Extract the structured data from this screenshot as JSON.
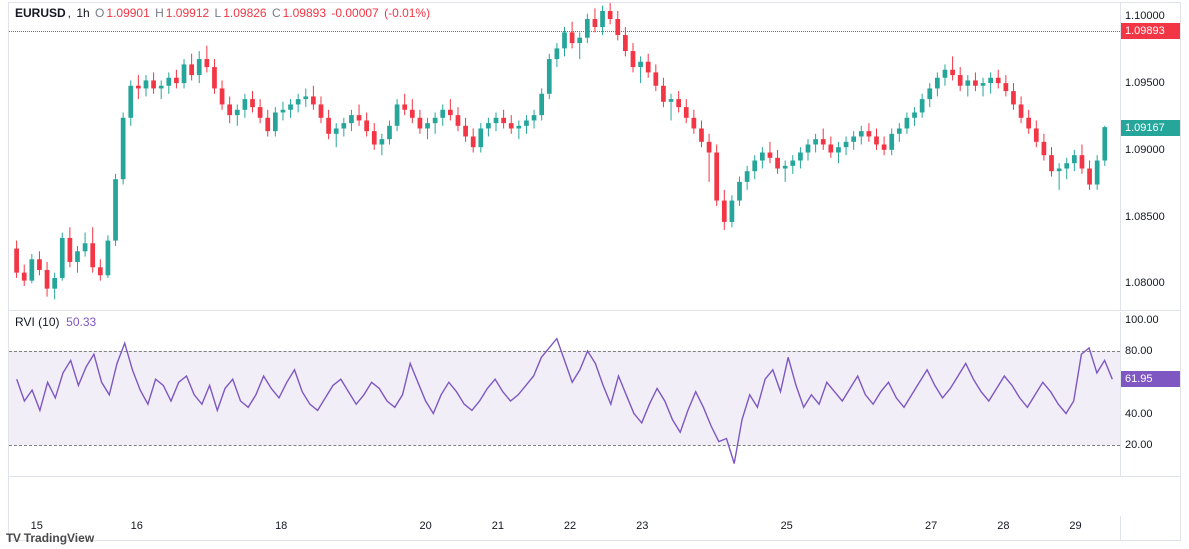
{
  "header": {
    "symbol": "EURUSD",
    "timeframe": "1h",
    "o": "1.09901",
    "h": "1.09912",
    "l": "1.09826",
    "c": "1.09893",
    "change_abs": "-0.00007",
    "change_pct": "(-0.01%)",
    "ohlc_color": "#f23645"
  },
  "price_chart": {
    "type": "candlestick",
    "ylim": [
      1.078,
      1.101
    ],
    "yticks": [
      1.08,
      1.085,
      1.09,
      1.095,
      1.1
    ],
    "ytick_labels": [
      "1.08000",
      "1.08500",
      "1.09000",
      "1.09500",
      "1.10000"
    ],
    "last_close_line": 1.09893,
    "last_close_label": "1.09893",
    "last_price": 1.09167,
    "last_price_label": "1.09167",
    "colors": {
      "up": "#26a69a",
      "down": "#f23645",
      "bg": "#ffffff",
      "grid": "#e0e3eb",
      "close_line": "#f23645",
      "price_badge_bg": "#26a69a"
    },
    "candles": [
      {
        "o": 1.0826,
        "h": 1.0832,
        "l": 1.0804,
        "c": 1.0808
      },
      {
        "o": 1.0808,
        "h": 1.0814,
        "l": 1.0798,
        "c": 1.0802
      },
      {
        "o": 1.0802,
        "h": 1.0822,
        "l": 1.08,
        "c": 1.0818
      },
      {
        "o": 1.0818,
        "h": 1.0824,
        "l": 1.0806,
        "c": 1.081
      },
      {
        "o": 1.081,
        "h": 1.0816,
        "l": 1.079,
        "c": 1.0796
      },
      {
        "o": 1.0796,
        "h": 1.0808,
        "l": 1.0788,
        "c": 1.0804
      },
      {
        "o": 1.0804,
        "h": 1.0838,
        "l": 1.0802,
        "c": 1.0834
      },
      {
        "o": 1.0834,
        "h": 1.0842,
        "l": 1.0812,
        "c": 1.0816
      },
      {
        "o": 1.0816,
        "h": 1.0828,
        "l": 1.0808,
        "c": 1.0824
      },
      {
        "o": 1.0824,
        "h": 1.0838,
        "l": 1.082,
        "c": 1.083
      },
      {
        "o": 1.083,
        "h": 1.0842,
        "l": 1.0808,
        "c": 1.0812
      },
      {
        "o": 1.0812,
        "h": 1.0818,
        "l": 1.0802,
        "c": 1.0806
      },
      {
        "o": 1.0806,
        "h": 1.0836,
        "l": 1.0804,
        "c": 1.0832
      },
      {
        "o": 1.0832,
        "h": 1.0882,
        "l": 1.0828,
        "c": 1.0878
      },
      {
        "o": 1.0878,
        "h": 1.0928,
        "l": 1.0874,
        "c": 1.0924
      },
      {
        "o": 1.0924,
        "h": 1.0952,
        "l": 1.0918,
        "c": 1.0948
      },
      {
        "o": 1.0948,
        "h": 1.0956,
        "l": 1.0938,
        "c": 1.0946
      },
      {
        "o": 1.0946,
        "h": 1.0956,
        "l": 1.094,
        "c": 1.0952
      },
      {
        "o": 1.0952,
        "h": 1.0958,
        "l": 1.0942,
        "c": 1.0946
      },
      {
        "o": 1.0946,
        "h": 1.0952,
        "l": 1.0938,
        "c": 1.0948
      },
      {
        "o": 1.0948,
        "h": 1.0958,
        "l": 1.0942,
        "c": 1.0954
      },
      {
        "o": 1.0954,
        "h": 1.096,
        "l": 1.0946,
        "c": 1.095
      },
      {
        "o": 1.095,
        "h": 1.0968,
        "l": 1.0946,
        "c": 1.0964
      },
      {
        "o": 1.0964,
        "h": 1.0972,
        "l": 1.0952,
        "c": 1.0956
      },
      {
        "o": 1.0956,
        "h": 1.0974,
        "l": 1.095,
        "c": 1.0968
      },
      {
        "o": 1.0968,
        "h": 1.0978,
        "l": 1.0958,
        "c": 1.0962
      },
      {
        "o": 1.0962,
        "h": 1.0968,
        "l": 1.0942,
        "c": 1.0946
      },
      {
        "o": 1.0946,
        "h": 1.0952,
        "l": 1.093,
        "c": 1.0934
      },
      {
        "o": 1.0934,
        "h": 1.094,
        "l": 1.092,
        "c": 1.0926
      },
      {
        "o": 1.0926,
        "h": 1.0934,
        "l": 1.0918,
        "c": 1.093
      },
      {
        "o": 1.093,
        "h": 1.0942,
        "l": 1.0924,
        "c": 1.0938
      },
      {
        "o": 1.0938,
        "h": 1.0944,
        "l": 1.0928,
        "c": 1.0932
      },
      {
        "o": 1.0932,
        "h": 1.0938,
        "l": 1.092,
        "c": 1.0924
      },
      {
        "o": 1.0924,
        "h": 1.093,
        "l": 1.091,
        "c": 1.0914
      },
      {
        "o": 1.0914,
        "h": 1.0932,
        "l": 1.091,
        "c": 1.0928
      },
      {
        "o": 1.0928,
        "h": 1.0936,
        "l": 1.0922,
        "c": 1.093
      },
      {
        "o": 1.093,
        "h": 1.0938,
        "l": 1.0924,
        "c": 1.0934
      },
      {
        "o": 1.0934,
        "h": 1.0942,
        "l": 1.0928,
        "c": 1.0938
      },
      {
        "o": 1.0938,
        "h": 1.0946,
        "l": 1.0932,
        "c": 1.094
      },
      {
        "o": 1.094,
        "h": 1.0948,
        "l": 1.093,
        "c": 1.0934
      },
      {
        "o": 1.0934,
        "h": 1.094,
        "l": 1.092,
        "c": 1.0924
      },
      {
        "o": 1.0924,
        "h": 1.093,
        "l": 1.0908,
        "c": 1.0912
      },
      {
        "o": 1.0912,
        "h": 1.092,
        "l": 1.0902,
        "c": 1.0916
      },
      {
        "o": 1.0916,
        "h": 1.0924,
        "l": 1.091,
        "c": 1.092
      },
      {
        "o": 1.092,
        "h": 1.093,
        "l": 1.0914,
        "c": 1.0926
      },
      {
        "o": 1.0926,
        "h": 1.0934,
        "l": 1.0918,
        "c": 1.0922
      },
      {
        "o": 1.0922,
        "h": 1.0928,
        "l": 1.091,
        "c": 1.0914
      },
      {
        "o": 1.0914,
        "h": 1.092,
        "l": 1.09,
        "c": 1.0904
      },
      {
        "o": 1.0904,
        "h": 1.0912,
        "l": 1.0896,
        "c": 1.0908
      },
      {
        "o": 1.0908,
        "h": 1.0922,
        "l": 1.0904,
        "c": 1.0918
      },
      {
        "o": 1.0918,
        "h": 1.0938,
        "l": 1.0914,
        "c": 1.0934
      },
      {
        "o": 1.0934,
        "h": 1.0942,
        "l": 1.0926,
        "c": 1.093
      },
      {
        "o": 1.093,
        "h": 1.0938,
        "l": 1.092,
        "c": 1.0924
      },
      {
        "o": 1.0924,
        "h": 1.093,
        "l": 1.0912,
        "c": 1.0916
      },
      {
        "o": 1.0916,
        "h": 1.0924,
        "l": 1.0908,
        "c": 1.092
      },
      {
        "o": 1.092,
        "h": 1.0928,
        "l": 1.0912,
        "c": 1.0924
      },
      {
        "o": 1.0924,
        "h": 1.0934,
        "l": 1.0918,
        "c": 1.093
      },
      {
        "o": 1.093,
        "h": 1.0938,
        "l": 1.0922,
        "c": 1.0926
      },
      {
        "o": 1.0926,
        "h": 1.0932,
        "l": 1.0914,
        "c": 1.0918
      },
      {
        "o": 1.0918,
        "h": 1.0924,
        "l": 1.0906,
        "c": 1.091
      },
      {
        "o": 1.091,
        "h": 1.0916,
        "l": 1.0898,
        "c": 1.0902
      },
      {
        "o": 1.0902,
        "h": 1.092,
        "l": 1.0898,
        "c": 1.0916
      },
      {
        "o": 1.0916,
        "h": 1.0924,
        "l": 1.091,
        "c": 1.092
      },
      {
        "o": 1.092,
        "h": 1.0928,
        "l": 1.0914,
        "c": 1.0924
      },
      {
        "o": 1.0924,
        "h": 1.093,
        "l": 1.0916,
        "c": 1.092
      },
      {
        "o": 1.092,
        "h": 1.0926,
        "l": 1.0912,
        "c": 1.0916
      },
      {
        "o": 1.0916,
        "h": 1.0922,
        "l": 1.0908,
        "c": 1.0918
      },
      {
        "o": 1.0918,
        "h": 1.0926,
        "l": 1.0912,
        "c": 1.0922
      },
      {
        "o": 1.0922,
        "h": 1.093,
        "l": 1.0916,
        "c": 1.0926
      },
      {
        "o": 1.0926,
        "h": 1.0946,
        "l": 1.0922,
        "c": 1.0942
      },
      {
        "o": 1.0942,
        "h": 1.0972,
        "l": 1.0938,
        "c": 1.0968
      },
      {
        "o": 1.0968,
        "h": 1.098,
        "l": 1.0962,
        "c": 1.0976
      },
      {
        "o": 1.0976,
        "h": 1.0992,
        "l": 1.097,
        "c": 1.0988
      },
      {
        "o": 1.0988,
        "h": 1.0996,
        "l": 1.0976,
        "c": 1.098
      },
      {
        "o": 1.098,
        "h": 1.0988,
        "l": 1.0968,
        "c": 1.0984
      },
      {
        "o": 1.0984,
        "h": 1.1002,
        "l": 1.098,
        "c": 1.0998
      },
      {
        "o": 1.0998,
        "h": 1.1006,
        "l": 1.0988,
        "c": 1.0992
      },
      {
        "o": 1.0992,
        "h": 1.1008,
        "l": 1.0986,
        "c": 1.1004
      },
      {
        "o": 1.1004,
        "h": 1.101,
        "l": 1.0994,
        "c": 1.0998
      },
      {
        "o": 1.0998,
        "h": 1.1004,
        "l": 1.0982,
        "c": 1.0986
      },
      {
        "o": 1.0986,
        "h": 1.0992,
        "l": 1.097,
        "c": 1.0974
      },
      {
        "o": 1.0974,
        "h": 1.098,
        "l": 1.0958,
        "c": 1.0962
      },
      {
        "o": 1.0962,
        "h": 1.097,
        "l": 1.095,
        "c": 1.0966
      },
      {
        "o": 1.0966,
        "h": 1.0972,
        "l": 1.0954,
        "c": 1.0958
      },
      {
        "o": 1.0958,
        "h": 1.0964,
        "l": 1.0944,
        "c": 1.0948
      },
      {
        "o": 1.0948,
        "h": 1.0954,
        "l": 1.0932,
        "c": 1.0936
      },
      {
        "o": 1.0936,
        "h": 1.0942,
        "l": 1.0922,
        "c": 1.0938
      },
      {
        "o": 1.0938,
        "h": 1.0944,
        "l": 1.0928,
        "c": 1.0932
      },
      {
        "o": 1.0932,
        "h": 1.0938,
        "l": 1.092,
        "c": 1.0924
      },
      {
        "o": 1.0924,
        "h": 1.093,
        "l": 1.0912,
        "c": 1.0916
      },
      {
        "o": 1.0916,
        "h": 1.0922,
        "l": 1.0902,
        "c": 1.0906
      },
      {
        "o": 1.0906,
        "h": 1.0912,
        "l": 1.0876,
        "c": 1.0898
      },
      {
        "o": 1.0898,
        "h": 1.0904,
        "l": 1.0858,
        "c": 1.0862
      },
      {
        "o": 1.0862,
        "h": 1.087,
        "l": 1.084,
        "c": 1.0846
      },
      {
        "o": 1.0846,
        "h": 1.0866,
        "l": 1.0842,
        "c": 1.0862
      },
      {
        "o": 1.0862,
        "h": 1.088,
        "l": 1.0858,
        "c": 1.0876
      },
      {
        "o": 1.0876,
        "h": 1.0888,
        "l": 1.087,
        "c": 1.0884
      },
      {
        "o": 1.0884,
        "h": 1.0896,
        "l": 1.0878,
        "c": 1.0892
      },
      {
        "o": 1.0892,
        "h": 1.0902,
        "l": 1.0886,
        "c": 1.0898
      },
      {
        "o": 1.0898,
        "h": 1.0906,
        "l": 1.089,
        "c": 1.0894
      },
      {
        "o": 1.0894,
        "h": 1.09,
        "l": 1.0882,
        "c": 1.0886
      },
      {
        "o": 1.0886,
        "h": 1.0892,
        "l": 1.0876,
        "c": 1.0888
      },
      {
        "o": 1.0888,
        "h": 1.0896,
        "l": 1.0882,
        "c": 1.0892
      },
      {
        "o": 1.0892,
        "h": 1.0902,
        "l": 1.0886,
        "c": 1.0898
      },
      {
        "o": 1.0898,
        "h": 1.0908,
        "l": 1.0892,
        "c": 1.0904
      },
      {
        "o": 1.0904,
        "h": 1.0912,
        "l": 1.0898,
        "c": 1.0908
      },
      {
        "o": 1.0908,
        "h": 1.0916,
        "l": 1.09,
        "c": 1.0904
      },
      {
        "o": 1.0904,
        "h": 1.091,
        "l": 1.0894,
        "c": 1.0898
      },
      {
        "o": 1.0898,
        "h": 1.0906,
        "l": 1.089,
        "c": 1.0902
      },
      {
        "o": 1.0902,
        "h": 1.091,
        "l": 1.0896,
        "c": 1.0906
      },
      {
        "o": 1.0906,
        "h": 1.0914,
        "l": 1.09,
        "c": 1.091
      },
      {
        "o": 1.091,
        "h": 1.0918,
        "l": 1.0904,
        "c": 1.0914
      },
      {
        "o": 1.0914,
        "h": 1.092,
        "l": 1.0906,
        "c": 1.091
      },
      {
        "o": 1.091,
        "h": 1.0916,
        "l": 1.09,
        "c": 1.0904
      },
      {
        "o": 1.0904,
        "h": 1.091,
        "l": 1.0896,
        "c": 1.09
      },
      {
        "o": 1.09,
        "h": 1.0916,
        "l": 1.0896,
        "c": 1.0912
      },
      {
        "o": 1.0912,
        "h": 1.092,
        "l": 1.0906,
        "c": 1.0916
      },
      {
        "o": 1.0916,
        "h": 1.0928,
        "l": 1.0912,
        "c": 1.0924
      },
      {
        "o": 1.0924,
        "h": 1.0932,
        "l": 1.0918,
        "c": 1.0928
      },
      {
        "o": 1.0928,
        "h": 1.0942,
        "l": 1.0924,
        "c": 1.0938
      },
      {
        "o": 1.0938,
        "h": 1.095,
        "l": 1.0932,
        "c": 1.0946
      },
      {
        "o": 1.0946,
        "h": 1.0958,
        "l": 1.094,
        "c": 1.0954
      },
      {
        "o": 1.0954,
        "h": 1.0964,
        "l": 1.0948,
        "c": 1.096
      },
      {
        "o": 1.096,
        "h": 1.097,
        "l": 1.0952,
        "c": 1.0956
      },
      {
        "o": 1.0956,
        "h": 1.0962,
        "l": 1.0944,
        "c": 1.0948
      },
      {
        "o": 1.0948,
        "h": 1.0956,
        "l": 1.094,
        "c": 1.0952
      },
      {
        "o": 1.0952,
        "h": 1.0958,
        "l": 1.0944,
        "c": 1.0948
      },
      {
        "o": 1.0948,
        "h": 1.0954,
        "l": 1.094,
        "c": 1.095
      },
      {
        "o": 1.095,
        "h": 1.0958,
        "l": 1.0942,
        "c": 1.0954
      },
      {
        "o": 1.0954,
        "h": 1.096,
        "l": 1.0946,
        "c": 1.095
      },
      {
        "o": 1.095,
        "h": 1.0956,
        "l": 1.094,
        "c": 1.0944
      },
      {
        "o": 1.0944,
        "h": 1.095,
        "l": 1.093,
        "c": 1.0934
      },
      {
        "o": 1.0934,
        "h": 1.094,
        "l": 1.092,
        "c": 1.0924
      },
      {
        "o": 1.0924,
        "h": 1.093,
        "l": 1.0912,
        "c": 1.0916
      },
      {
        "o": 1.0916,
        "h": 1.0922,
        "l": 1.0902,
        "c": 1.0906
      },
      {
        "o": 1.0906,
        "h": 1.0912,
        "l": 1.0892,
        "c": 1.0896
      },
      {
        "o": 1.0896,
        "h": 1.0902,
        "l": 1.088,
        "c": 1.0884
      },
      {
        "o": 1.0884,
        "h": 1.089,
        "l": 1.087,
        "c": 1.0886
      },
      {
        "o": 1.0886,
        "h": 1.0894,
        "l": 1.0878,
        "c": 1.089
      },
      {
        "o": 1.089,
        "h": 1.09,
        "l": 1.0884,
        "c": 1.0896
      },
      {
        "o": 1.0896,
        "h": 1.0904,
        "l": 1.0882,
        "c": 1.0886
      },
      {
        "o": 1.0886,
        "h": 1.0892,
        "l": 1.087,
        "c": 1.0874
      },
      {
        "o": 1.0874,
        "h": 1.0896,
        "l": 1.087,
        "c": 1.0892
      },
      {
        "o": 1.0892,
        "h": 1.0918,
        "l": 1.0888,
        "c": 1.0917
      }
    ]
  },
  "rvi_chart": {
    "type": "line",
    "label": "RVI",
    "period": "10",
    "legend_val": "50.33",
    "ylim": [
      0,
      105
    ],
    "yticks": [
      20,
      40,
      80,
      100
    ],
    "ytick_labels": [
      "20.00",
      "40.00",
      "80.00",
      "100.00"
    ],
    "band_lo": 20,
    "band_hi": 80,
    "last": 61.95,
    "last_label": "61.95",
    "colors": {
      "line": "#7e57c2",
      "band_fill": "#e6e0f3",
      "band_border": "#808080",
      "badge_bg": "#7e57c2"
    },
    "values": [
      62,
      48,
      55,
      42,
      60,
      50,
      66,
      74,
      58,
      70,
      78,
      60,
      52,
      72,
      85,
      68,
      55,
      46,
      62,
      58,
      48,
      60,
      64,
      52,
      46,
      58,
      42,
      56,
      62,
      48,
      44,
      52,
      64,
      56,
      50,
      60,
      68,
      54,
      46,
      42,
      50,
      58,
      62,
      54,
      46,
      52,
      60,
      56,
      48,
      44,
      52,
      72,
      60,
      48,
      40,
      52,
      60,
      54,
      46,
      42,
      48,
      56,
      62,
      54,
      48,
      52,
      58,
      64,
      76,
      82,
      88,
      74,
      60,
      68,
      80,
      72,
      58,
      46,
      64,
      52,
      40,
      34,
      46,
      56,
      48,
      36,
      28,
      42,
      54,
      44,
      32,
      22,
      24,
      8,
      36,
      52,
      44,
      62,
      68,
      54,
      76,
      58,
      44,
      52,
      46,
      60,
      54,
      48,
      56,
      64,
      52,
      46,
      54,
      60,
      50,
      44,
      52,
      60,
      68,
      58,
      50,
      56,
      64,
      72,
      62,
      54,
      48,
      56,
      64,
      58,
      50,
      44,
      52,
      60,
      54,
      46,
      40,
      48,
      78,
      82,
      66,
      74,
      62
    ]
  },
  "xaxis": {
    "ticks": [
      {
        "pos": 0.025,
        "label": "15"
      },
      {
        "pos": 0.115,
        "label": "16"
      },
      {
        "pos": 0.245,
        "label": "18"
      },
      {
        "pos": 0.375,
        "label": "20"
      },
      {
        "pos": 0.44,
        "label": "21"
      },
      {
        "pos": 0.505,
        "label": "22"
      },
      {
        "pos": 0.57,
        "label": "23"
      },
      {
        "pos": 0.7,
        "label": "25"
      },
      {
        "pos": 0.83,
        "label": "27"
      },
      {
        "pos": 0.895,
        "label": "28"
      },
      {
        "pos": 0.96,
        "label": "29"
      }
    ]
  },
  "watermark": "TradingView"
}
